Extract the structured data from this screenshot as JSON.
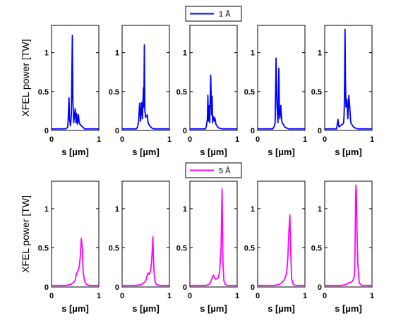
{
  "chart_data": [
    {
      "type": "line",
      "row": 1,
      "xlabel": "s [µm]",
      "ylabel": "XFEL power [TW]",
      "xlim": [
        0,
        1
      ],
      "ylim": [
        0,
        1.35
      ],
      "xticks": [
        "0",
        "1"
      ],
      "yticks": [
        "0",
        "0.5",
        "1"
      ],
      "grid": false,
      "legend": {
        "label": "1 Å",
        "color": "#0000ff",
        "placement": "top-center"
      },
      "series": [
        {
          "x": [
            0,
            0.3,
            0.34,
            0.35,
            0.37,
            0.38,
            0.4,
            0.42,
            0.44,
            0.45,
            0.47,
            0.5,
            0.52,
            0.53,
            0.55,
            0.57,
            0.58,
            0.6,
            0.63,
            0.65,
            0.7,
            1
          ],
          "y": [
            0.02,
            0.02,
            0.04,
            0.12,
            0.42,
            0.15,
            0.06,
            0.2,
            1.22,
            0.4,
            0.1,
            0.28,
            0.1,
            0.22,
            0.08,
            0.2,
            0.12,
            0.08,
            0.06,
            0.05,
            0.02,
            0.02
          ]
        },
        {
          "x": [
            0,
            0.3,
            0.33,
            0.35,
            0.37,
            0.39,
            0.41,
            0.43,
            0.45,
            0.46,
            0.47,
            0.48,
            0.5,
            0.52,
            0.53,
            0.55,
            0.58,
            0.6,
            0.63,
            0.67,
            1
          ],
          "y": [
            0.02,
            0.02,
            0.05,
            0.12,
            0.35,
            0.12,
            0.36,
            0.15,
            0.55,
            0.3,
            1.1,
            0.25,
            0.17,
            0.18,
            0.2,
            0.1,
            0.06,
            0.05,
            0.03,
            0.02,
            0.02
          ]
        },
        {
          "x": [
            0,
            0.33,
            0.35,
            0.37,
            0.38,
            0.39,
            0.41,
            0.42,
            0.44,
            0.46,
            0.47,
            0.48,
            0.5,
            0.52,
            0.53,
            0.55,
            0.58,
            0.62,
            0.68,
            1
          ],
          "y": [
            0.02,
            0.02,
            0.06,
            0.15,
            0.45,
            0.12,
            0.32,
            0.1,
            0.71,
            0.2,
            0.44,
            0.1,
            0.18,
            0.12,
            0.16,
            0.08,
            0.05,
            0.03,
            0.02,
            0.02
          ]
        },
        {
          "x": [
            0,
            0.32,
            0.35,
            0.37,
            0.39,
            0.41,
            0.43,
            0.45,
            0.46,
            0.47,
            0.49,
            0.51,
            0.52,
            0.54,
            0.56,
            0.58,
            0.62,
            0.66,
            1
          ],
          "y": [
            0.02,
            0.02,
            0.05,
            0.1,
            0.93,
            0.3,
            0.1,
            0.8,
            0.2,
            0.15,
            0.32,
            0.12,
            0.1,
            0.08,
            0.06,
            0.04,
            0.03,
            0.02,
            0.02
          ]
        },
        {
          "x": [
            0,
            0.25,
            0.28,
            0.3,
            0.32,
            0.35,
            0.38,
            0.4,
            0.41,
            0.42,
            0.43,
            0.44,
            0.45,
            0.47,
            0.49,
            0.51,
            0.53,
            0.55,
            0.57,
            0.59,
            0.62,
            0.65,
            0.7,
            1
          ],
          "y": [
            0.02,
            0.02,
            0.14,
            0.05,
            0.05,
            0.07,
            0.08,
            0.1,
            0.2,
            0.5,
            1.3,
            0.6,
            0.3,
            0.4,
            0.15,
            0.45,
            0.3,
            0.1,
            0.08,
            0.06,
            0.04,
            0.03,
            0.02,
            0.02
          ]
        }
      ]
    },
    {
      "type": "line",
      "row": 2,
      "xlabel": "s [µm]",
      "ylabel": "XFEL power [TW]",
      "xlim": [
        0,
        1
      ],
      "ylim": [
        0,
        1.35
      ],
      "xticks": [
        "0",
        "1"
      ],
      "yticks": [
        "0",
        "0.5",
        "1"
      ],
      "grid": false,
      "legend": {
        "label": "5 Å",
        "color": "#ff00ff",
        "placement": "top-center"
      },
      "series": [
        {
          "x": [
            0,
            0.3,
            0.4,
            0.45,
            0.5,
            0.52,
            0.55,
            0.57,
            0.59,
            0.61,
            0.63,
            0.65,
            0.67,
            0.7,
            0.72,
            0.75,
            0.8,
            1
          ],
          "y": [
            0.02,
            0.02,
            0.03,
            0.05,
            0.08,
            0.15,
            0.2,
            0.22,
            0.28,
            0.4,
            0.62,
            0.5,
            0.18,
            0.08,
            0.05,
            0.03,
            0.02,
            0.02
          ]
        },
        {
          "x": [
            0,
            0.3,
            0.4,
            0.45,
            0.5,
            0.53,
            0.55,
            0.57,
            0.6,
            0.62,
            0.64,
            0.65,
            0.66,
            0.68,
            0.7,
            0.73,
            0.8,
            1
          ],
          "y": [
            0.02,
            0.02,
            0.03,
            0.05,
            0.08,
            0.15,
            0.18,
            0.16,
            0.2,
            0.3,
            0.5,
            0.64,
            0.4,
            0.15,
            0.06,
            0.03,
            0.02,
            0.02
          ]
        },
        {
          "x": [
            0,
            0.35,
            0.42,
            0.45,
            0.48,
            0.5,
            0.52,
            0.55,
            0.6,
            0.63,
            0.66,
            0.68,
            0.69,
            0.7,
            0.72,
            0.75,
            0.8,
            1
          ],
          "y": [
            0.02,
            0.02,
            0.04,
            0.08,
            0.13,
            0.15,
            0.12,
            0.1,
            0.12,
            0.2,
            0.5,
            1.25,
            0.8,
            0.3,
            0.08,
            0.03,
            0.02,
            0.02
          ]
        },
        {
          "x": [
            0,
            0.35,
            0.45,
            0.5,
            0.55,
            0.58,
            0.6,
            0.62,
            0.64,
            0.66,
            0.68,
            0.7,
            0.72,
            0.76,
            0.8,
            1
          ],
          "y": [
            0.02,
            0.02,
            0.03,
            0.05,
            0.08,
            0.12,
            0.15,
            0.22,
            0.4,
            0.7,
            0.92,
            0.45,
            0.1,
            0.03,
            0.02,
            0.02
          ]
        },
        {
          "x": [
            0,
            0.35,
            0.45,
            0.5,
            0.55,
            0.58,
            0.61,
            0.63,
            0.64,
            0.65,
            0.66,
            0.67,
            0.68,
            0.7,
            0.73,
            0.78,
            1
          ],
          "y": [
            0.02,
            0.02,
            0.03,
            0.05,
            0.06,
            0.07,
            0.1,
            0.15,
            0.4,
            1.0,
            1.3,
            1.2,
            0.8,
            0.3,
            0.05,
            0.02,
            0.02
          ]
        }
      ]
    }
  ]
}
